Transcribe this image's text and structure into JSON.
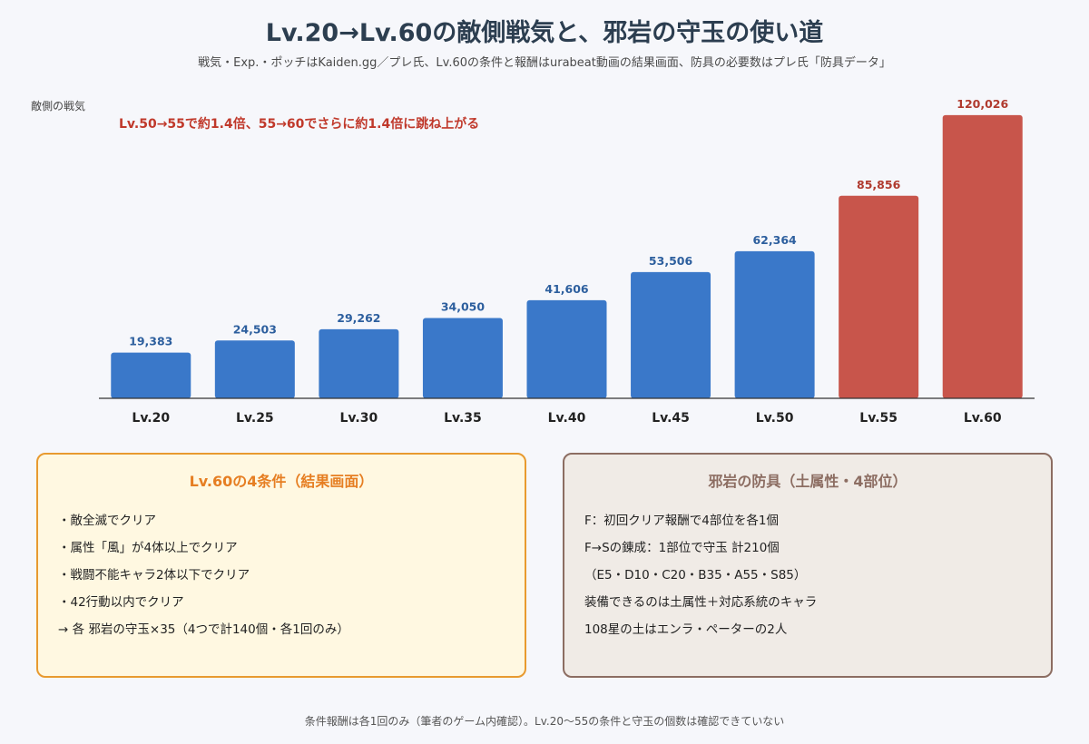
{
  "header": {
    "title": "Lv.20→Lv.60の敵側戦気と、邪岩の守玉の使い道",
    "subtitle": "戦気・Exp.・ポッチはKaiden.gg／プレ氏、Lv.60の条件と報酬はurabeat動画の結果画面、防具の必要数はプレ氏「防具データ」"
  },
  "chart_data": {
    "type": "bar",
    "title": "",
    "ylabel": "敵側の戦気",
    "xlabel": "",
    "annotation": "Lv.50→55で約1.4倍、55→60でさらに約1.4倍に跳ね上がる",
    "categories": [
      "Lv.20",
      "Lv.25",
      "Lv.30",
      "Lv.35",
      "Lv.40",
      "Lv.45",
      "Lv.50",
      "Lv.55",
      "Lv.60"
    ],
    "values": [
      19383,
      24503,
      29262,
      34050,
      41606,
      53506,
      62364,
      85856,
      120026
    ],
    "value_labels": [
      "19,383",
      "24,503",
      "29,262",
      "34,050",
      "41,606",
      "53,506",
      "62,364",
      "85,856",
      "120,026"
    ],
    "ylim": [
      0,
      125000
    ],
    "grid": false,
    "colors": {
      "normal": "#3a78c9",
      "highlight": "#c8554b",
      "normal_label": "#2d5f9e",
      "highlight_label": "#b03a2e"
    },
    "highlight_categories": [
      "Lv.55",
      "Lv.60"
    ]
  },
  "left_panel": {
    "title": "Lv.60の4条件（結果画面）",
    "items": [
      "・敵全滅でクリア",
      "・属性「風」が4体以上でクリア",
      "・戦闘不能キャラ2体以下でクリア",
      "・42行動以内でクリア",
      "→ 各 邪岩の守玉×35（4つで計140個・各1回のみ）"
    ]
  },
  "right_panel": {
    "title": "邪岩の防具（土属性・4部位）",
    "items": [
      "F：初回クリア報酬で4部位を各1個",
      "F→Sの錬成：1部位で守玉 計210個",
      "（E5・D10・C20・B35・A55・S85）",
      "装備できるのは土属性＋対応系統のキャラ",
      "108星の土はエンラ・ペーターの2人"
    ]
  },
  "footer": {
    "note": "条件報酬は各1回のみ（筆者のゲーム内確認）。Lv.20〜55の条件と守玉の個数は確認できていない"
  }
}
